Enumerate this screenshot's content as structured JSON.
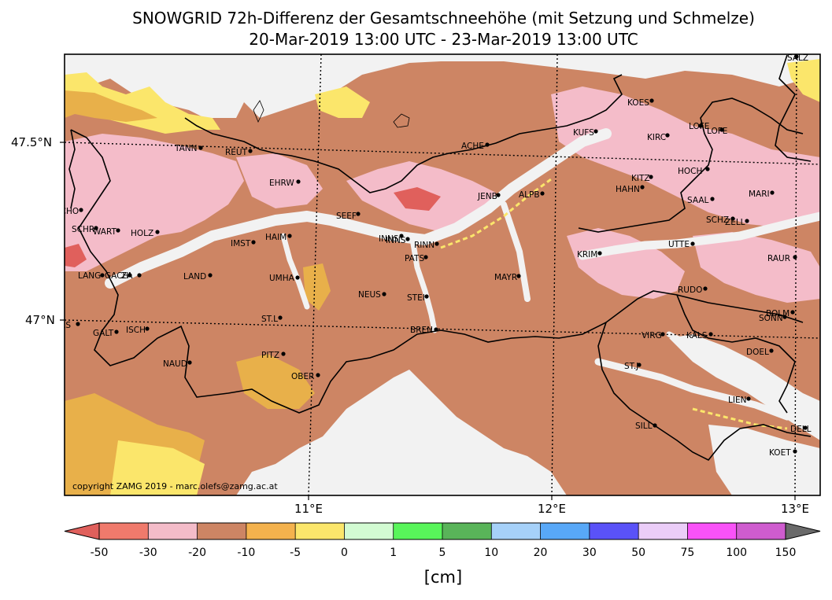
{
  "title": {
    "line1": "SNOWGRID 72h-Differenz der Gesamtschneehöhe (mit Setzung und Schmelze)",
    "line2": "20-Mar-2019 13:00 UTC - 23-Mar-2019 13:00 UTC"
  },
  "copyright": "copyright ZAMG 2019 - marc.olefs@zamg.ac.at",
  "axes": {
    "lat_labels": [
      "47.5°N",
      "47°N"
    ],
    "lon_labels": [
      "11°E",
      "12°E",
      "13°E"
    ]
  },
  "colorbar": {
    "unit": "[cm]",
    "ticks": [
      "-50",
      "-30",
      "-20",
      "-10",
      "-5",
      "0",
      "1",
      "5",
      "10",
      "20",
      "30",
      "50",
      "75",
      "100",
      "150"
    ],
    "colors": [
      "#f07a6c",
      "#f4bcc9",
      "#cd8564",
      "#f4b24d",
      "#fbe66b",
      "#d2fbd2",
      "#58f55a",
      "#59b459",
      "#a6d1f9",
      "#58a8f8",
      "#5a52f8",
      "#ebcdf8",
      "#f952f8",
      "#cf5ccf"
    ],
    "under_color": "#e0605c",
    "over_color": "#6a6a6a"
  },
  "colors": {
    "decrease_strong": "#cd8564",
    "decrease_light": "#f4bcc9",
    "decrease_max": "#e0605c",
    "orange": "#e8b04a",
    "yellow": "#fbe66b",
    "valley_white": "#f2f2f2"
  },
  "stations": [
    "SALZ",
    "KOES",
    "LOFE",
    "LOFE",
    "KUFS",
    "KIRC",
    "TANN",
    "REUT",
    "ACHE",
    "HOCH",
    "KITZ",
    "EHRW",
    "HAHN",
    "JENB",
    "ALPB",
    "MARI",
    "SCHO",
    "SAAL",
    "SEEF",
    "SCHZ",
    "ZELL",
    "SCHR",
    "WART",
    "HOLZ",
    "HAIM",
    "IMST",
    "INNS",
    "INNS",
    "RINN",
    "UTTE",
    "PATS",
    "KRIM",
    "RAUR",
    "LANG",
    "GACH",
    "ZA",
    "LAND",
    "UMHA",
    "MAYR",
    "RUDO",
    "NEUS",
    "STEI",
    "ST.L",
    "BOLM",
    "SONN",
    "GAS",
    "BREN",
    "ISCH",
    "GALT",
    "VIRG",
    "KALS",
    "DOEL",
    "PITZ",
    "NAUD",
    "ST.J",
    "OBER",
    "LIEN",
    "SILL",
    "DELL",
    "KOET"
  ]
}
